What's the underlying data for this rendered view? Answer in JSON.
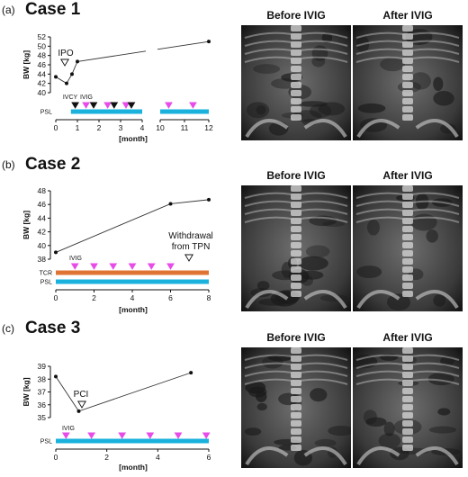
{
  "colors": {
    "psl": "#1ab2dd",
    "tcr": "#e07434",
    "ivig": "#e84ce8",
    "ivcy": "#111111",
    "line": "#333333"
  },
  "panels": [
    {
      "letter": "(a)",
      "title": "Case 1",
      "before_label": "Before IVIG",
      "after_label": "After IVIG"
    },
    {
      "letter": "(b)",
      "title": "Case 2",
      "before_label": "Before IVIG",
      "after_label": "After IVIG"
    },
    {
      "letter": "(c)",
      "title": "Case 3",
      "before_label": "Before IVIG",
      "after_label": "After IVIG"
    }
  ],
  "chart_data": [
    {
      "type": "line",
      "panel": "a",
      "xlabel": "[month]",
      "ylabel": "BW [kg]",
      "ylim": [
        40,
        52
      ],
      "yticks": [
        40,
        42,
        44,
        46,
        48,
        50,
        52
      ],
      "xticks": [
        0,
        1,
        2,
        3,
        4,
        10,
        11,
        12
      ],
      "axis_break": [
        4,
        10
      ],
      "series": [
        {
          "x": [
            0,
            0.5,
            0.75,
            1,
            12
          ],
          "y": [
            43.4,
            42.0,
            44.0,
            46.7,
            51.0
          ]
        }
      ],
      "annotations": [
        {
          "text": "IPO",
          "x": 0.75,
          "marker": "open-triangle-down"
        }
      ],
      "event_labels": {
        "ivcy": "IVCY",
        "ivig": "IVIG"
      },
      "ivcy_months": [
        0.9,
        1.75,
        2.7,
        3.5
      ],
      "ivig_months": [
        1.4,
        2.4,
        3.25,
        10.35,
        11.35
      ],
      "bars": [
        {
          "label": "PSL",
          "start": 0.7,
          "end": 12,
          "color": "#1ab2dd"
        }
      ]
    },
    {
      "type": "line",
      "panel": "b",
      "xlabel": "[month]",
      "ylabel": "BW [kg]",
      "ylim": [
        38,
        48
      ],
      "yticks": [
        38,
        40,
        42,
        44,
        46,
        48
      ],
      "xticks": [
        0,
        2,
        4,
        6,
        8
      ],
      "series": [
        {
          "x": [
            0,
            6,
            8
          ],
          "y": [
            39.0,
            46.1,
            46.7
          ]
        }
      ],
      "annotations": [
        {
          "text": "Withdrawal from TPN",
          "x": 7,
          "marker": "open-triangle-down"
        }
      ],
      "event_labels": {
        "ivig": "IVIG"
      },
      "ivig_months": [
        1,
        2,
        3,
        4,
        5,
        6
      ],
      "bars": [
        {
          "label": "TCR",
          "start": 0,
          "end": 8,
          "color": "#e07434"
        },
        {
          "label": "PSL",
          "start": 0,
          "end": 8,
          "color": "#1ab2dd"
        }
      ]
    },
    {
      "type": "line",
      "panel": "c",
      "xlabel": "[month]",
      "ylabel": "BW [kg]",
      "ylim": [
        35,
        39
      ],
      "yticks": [
        35,
        36,
        37,
        38,
        39
      ],
      "xticks": [
        0,
        2,
        4,
        6
      ],
      "series": [
        {
          "x": [
            0,
            0.9,
            5.3
          ],
          "y": [
            38.2,
            35.5,
            38.5
          ]
        }
      ],
      "annotations": [
        {
          "text": "PCI",
          "x": 0.9,
          "marker": "open-triangle-down"
        }
      ],
      "event_labels": {
        "ivig": "IVIG"
      },
      "ivig_months": [
        0.4,
        1.4,
        2.6,
        3.7,
        4.8,
        5.9
      ],
      "bars": [
        {
          "label": "PSL",
          "start": 0,
          "end": 6,
          "color": "#1ab2dd"
        }
      ]
    }
  ]
}
